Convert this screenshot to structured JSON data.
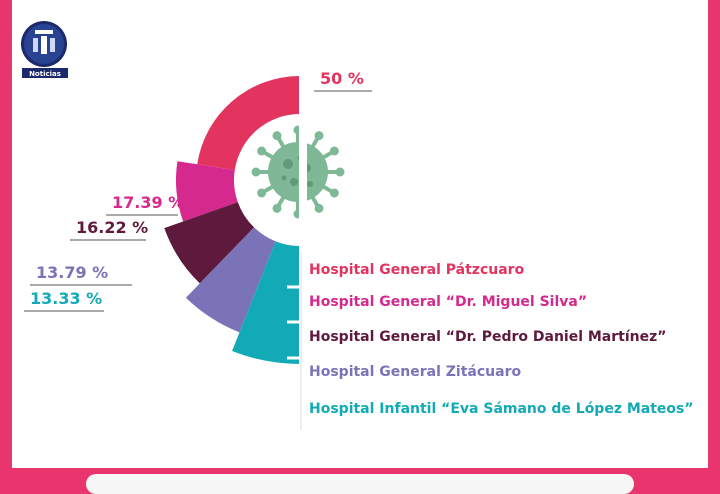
{
  "brand": {
    "logo_text": "Noticias"
  },
  "colors": {
    "frame": "#e8356d",
    "virus": "#7fb896"
  },
  "chart_data": {
    "type": "pie",
    "subtype": "half-donut",
    "series": [
      {
        "name": "Hospital General Pátzcuaro",
        "value": 50,
        "label": "50 %",
        "color": "#e3335f"
      },
      {
        "name": "Hospital General “Dr. Miguel Silva”",
        "value": 17.39,
        "label": "17.39 %",
        "color": "#d6298e"
      },
      {
        "name": "Hospital General “Dr. Pedro Daniel Martínez”",
        "value": 16.22,
        "label": "16.22 %",
        "color": "#5e1a3c"
      },
      {
        "name": "Hospital General Zitácuaro",
        "value": 13.79,
        "label": "13.79 %",
        "color": "#7b73b8"
      },
      {
        "name": "Hospital Infantil “Eva Sámano de López Mateos”",
        "value": 13.33,
        "label": "13.33 %",
        "color": "#12aab6"
      }
    ]
  }
}
